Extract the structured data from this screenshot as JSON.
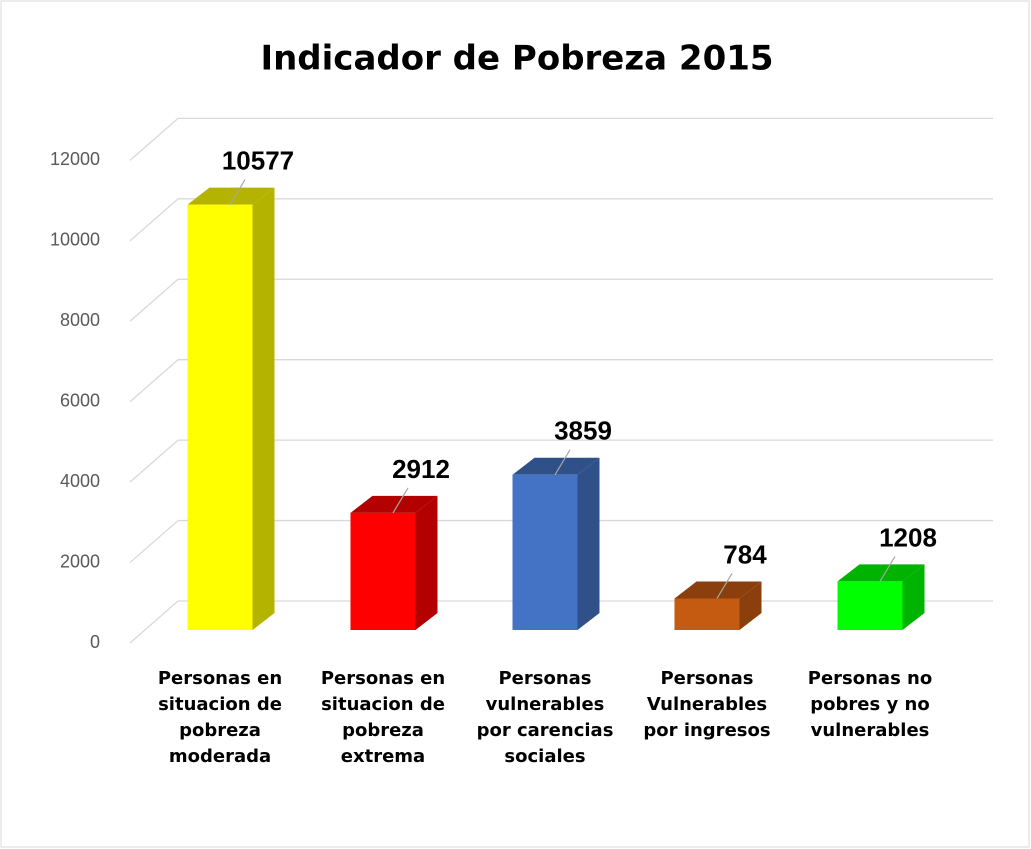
{
  "chart_data": {
    "type": "bar3d",
    "title": "Indicador de Pobreza 2015",
    "categories": [
      "Personas en situacion de pobreza moderada",
      "Personas en situacion de pobreza extrema",
      "Personas vulnerables por carencias sociales",
      "Personas Vulnerables por ingresos",
      "Personas no pobres y no vulnerables"
    ],
    "values": [
      10577,
      2912,
      3859,
      784,
      1208
    ],
    "colors": [
      "#ffff00",
      "#ff0000",
      "#4472c4",
      "#c55a11",
      "#00ff00"
    ],
    "side_colors": [
      "#b3b300",
      "#b30000",
      "#2f5089",
      "#8a3f0c",
      "#00b300"
    ],
    "ylim": [
      0,
      12000
    ],
    "yticks": [
      0,
      2000,
      4000,
      6000,
      8000,
      10000,
      12000
    ],
    "grid": true
  }
}
